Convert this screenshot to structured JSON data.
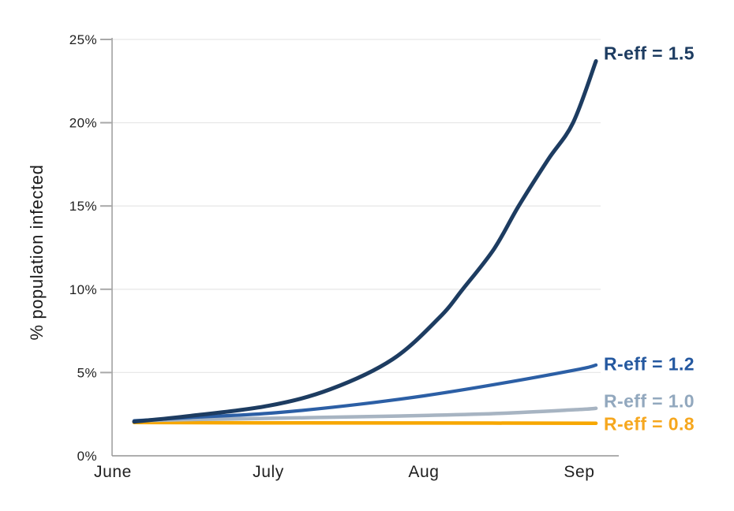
{
  "figure": {
    "background": "#ffffff"
  },
  "axes_style": {
    "axis_line_color": "#949494",
    "tick_mark_color": "#a8a8a8",
    "gridline_color": "#e8e8e8",
    "tick_label_color": "#1f1f1f"
  },
  "chart_data": {
    "type": "line",
    "title": "",
    "xlabel": "",
    "ylabel": "% population infected",
    "xlim": [
      0,
      3.25
    ],
    "ylim": [
      0,
      25
    ],
    "grid": "horizontal, every 5%",
    "legend_position": "end-of-line labels, right side",
    "x_ticks": {
      "values": [
        0,
        1,
        2,
        3
      ],
      "labels": [
        "June",
        "July",
        "Aug",
        "Sep"
      ]
    },
    "y_ticks": {
      "values": [
        0,
        5,
        10,
        15,
        20,
        25
      ],
      "labels": [
        "0%",
        "5%",
        "10%",
        "15%",
        "20%",
        "25%"
      ]
    },
    "series": [
      {
        "name": "R-eff = 0.8",
        "color": "#f7a700",
        "label_color": "#f6a71e",
        "stroke_width": 4.5,
        "label_dy": 1,
        "points": [
          [
            0.137,
            2.0
          ],
          [
            1.0,
            1.98
          ],
          [
            2.0,
            1.97
          ],
          [
            3.107,
            1.95
          ]
        ]
      },
      {
        "name": "R-eff = 1.0",
        "color": "#a7b4c2",
        "label_color": "#92a8be",
        "stroke_width": 4.5,
        "label_dy": -9,
        "points": [
          [
            0.137,
            2.1
          ],
          [
            0.5,
            2.18
          ],
          [
            1.0,
            2.25
          ],
          [
            1.5,
            2.33
          ],
          [
            2.0,
            2.42
          ],
          [
            2.5,
            2.55
          ],
          [
            3.0,
            2.78
          ],
          [
            3.107,
            2.85
          ]
        ]
      },
      {
        "name": "R-eff = 1.2",
        "color": "#2c5fa5",
        "label_color": "#2458a0",
        "stroke_width": 4.2,
        "label_dy": -1,
        "points": [
          [
            0.137,
            2.1
          ],
          [
            0.5,
            2.3
          ],
          [
            1.0,
            2.55
          ],
          [
            1.5,
            3.0
          ],
          [
            2.0,
            3.6
          ],
          [
            2.5,
            4.35
          ],
          [
            3.0,
            5.2
          ],
          [
            3.107,
            5.45
          ]
        ]
      },
      {
        "name": "R-eff = 1.5",
        "color": "#1d3c61",
        "label_color": "#1d3c61",
        "stroke_width": 5,
        "label_dy": -9,
        "points": [
          [
            0.137,
            2.05
          ],
          [
            0.5,
            2.4
          ],
          [
            1.0,
            3.0
          ],
          [
            1.4,
            4.0
          ],
          [
            1.8,
            5.8
          ],
          [
            2.1,
            8.3
          ],
          [
            2.25,
            10.0
          ],
          [
            2.45,
            12.4
          ],
          [
            2.61,
            15.0
          ],
          [
            2.8,
            17.8
          ],
          [
            2.96,
            20.0
          ],
          [
            3.107,
            23.7
          ]
        ]
      }
    ]
  }
}
